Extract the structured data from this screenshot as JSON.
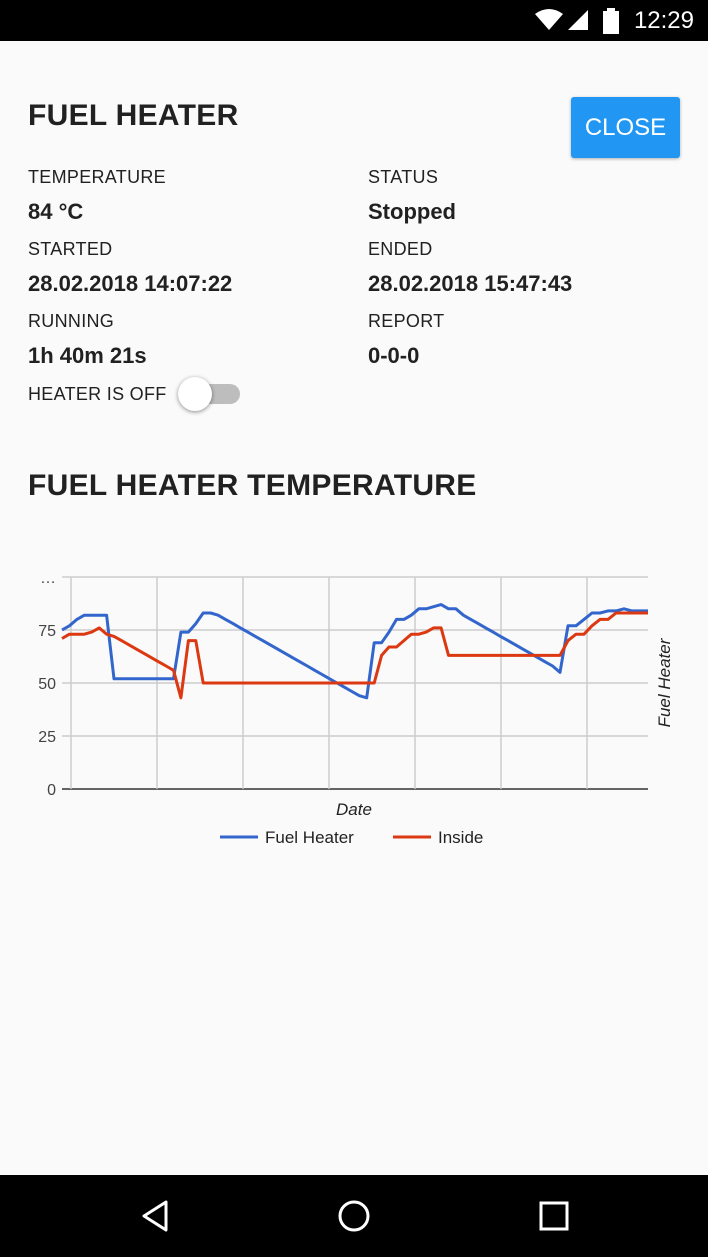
{
  "status_bar": {
    "time": "12:29"
  },
  "header": {
    "title": "FUEL HEATER",
    "close_label": "CLOSE"
  },
  "details": {
    "temperature_label": "TEMPERATURE",
    "temperature_value": "84 °C",
    "status_label": "STATUS",
    "status_value": "Stopped",
    "started_label": "STARTED",
    "started_value": "28.02.2018 14:07:22",
    "ended_label": "ENDED",
    "ended_value": "28.02.2018 15:47:43",
    "running_label": "RUNNING",
    "running_value": "1h 40m 21s",
    "report_label": "REPORT",
    "report_value": "0-0-0"
  },
  "toggle": {
    "label": "HEATER IS OFF",
    "on": false
  },
  "chart_section": {
    "title": "FUEL HEATER TEMPERATURE"
  },
  "chart_data": {
    "type": "line",
    "xlabel": "Date",
    "ylabel": "Fuel Heater",
    "y_ticks": [
      "0",
      "25",
      "50",
      "75",
      "…"
    ],
    "ylim": [
      0,
      100
    ],
    "grid": true,
    "legend_position": "bottom",
    "x": [
      0,
      1,
      2,
      3,
      4,
      5,
      6,
      7,
      8,
      9,
      10,
      11,
      12,
      13,
      14,
      15,
      16,
      17,
      18,
      19,
      20,
      21,
      22,
      23,
      24,
      25,
      26,
      27,
      28,
      29,
      30,
      31,
      32,
      33,
      34,
      35,
      36,
      37,
      38,
      39,
      40,
      41,
      42,
      43,
      44,
      45,
      46,
      47,
      48,
      49,
      50,
      51,
      52,
      53,
      54,
      55,
      56,
      57,
      58,
      59,
      60,
      61,
      62,
      63,
      64,
      65,
      66,
      67
    ],
    "series": [
      {
        "name": "Fuel Heater",
        "color": "#3366cc",
        "values": [
          75,
          77,
          80,
          82,
          82,
          82,
          82,
          52,
          52,
          52,
          52,
          52,
          52,
          52,
          52,
          52,
          74,
          74,
          78,
          83,
          83,
          82,
          80,
          78,
          76,
          74,
          72,
          70,
          68,
          66,
          64,
          62,
          60,
          58,
          56,
          54,
          52,
          50,
          48,
          46,
          44,
          43,
          69,
          69,
          74,
          80,
          80,
          82,
          85,
          85,
          86,
          87,
          85,
          85,
          82,
          80,
          78,
          76,
          74,
          72,
          70,
          68,
          66,
          64,
          62,
          60,
          58,
          55
        ],
        "tail": [
          77,
          77,
          80,
          83,
          83,
          84,
          84,
          85,
          84,
          84,
          84
        ]
      },
      {
        "name": "Inside",
        "color": "#dc3912",
        "values": [
          71,
          73,
          73,
          73,
          74,
          76,
          73,
          72,
          70,
          68,
          66,
          64,
          62,
          60,
          58,
          56,
          43,
          70,
          70,
          50,
          50,
          50,
          50,
          50,
          50,
          50,
          50,
          50,
          50,
          50,
          50,
          50,
          50,
          50,
          50,
          50,
          50,
          50,
          50,
          50,
          50,
          50,
          50,
          63,
          67,
          67,
          70,
          73,
          73,
          74,
          76,
          76,
          63,
          63,
          63,
          63,
          63,
          63,
          63,
          63,
          63,
          63,
          63,
          63,
          63,
          63,
          63,
          63
        ],
        "tail": [
          70,
          73,
          73,
          77,
          80,
          80,
          83,
          83,
          83,
          83,
          83
        ]
      }
    ]
  },
  "nav": {
    "back": "back-icon",
    "home": "home-icon",
    "recents": "recents-icon"
  }
}
